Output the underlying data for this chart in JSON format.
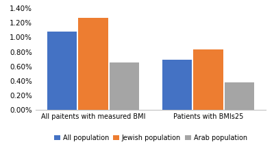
{
  "groups": [
    "All paitents with measured BMI",
    "Patients with BMIs25"
  ],
  "series": {
    "All population": [
      0.01075,
      0.00695
    ],
    "Jewish population": [
      0.01265,
      0.00835
    ],
    "Arab population": [
      0.00655,
      0.00385
    ]
  },
  "colors": {
    "All population": "#4472C4",
    "Jewish population": "#ED7D31",
    "Arab population": "#A5A5A5"
  },
  "ylim": [
    0,
    0.014
  ],
  "yticks": [
    0.0,
    0.002,
    0.004,
    0.006,
    0.008,
    0.01,
    0.012,
    0.014
  ],
  "yticklabels": [
    "0.00%",
    "0.20%",
    "0.40%",
    "0.60%",
    "0.80%",
    "1.00%",
    "1.20%",
    "1.40%"
  ],
  "legend_labels": [
    "All population",
    "Jewish population",
    "Arab population"
  ],
  "bar_width": 0.18,
  "background_color": "#ffffff"
}
